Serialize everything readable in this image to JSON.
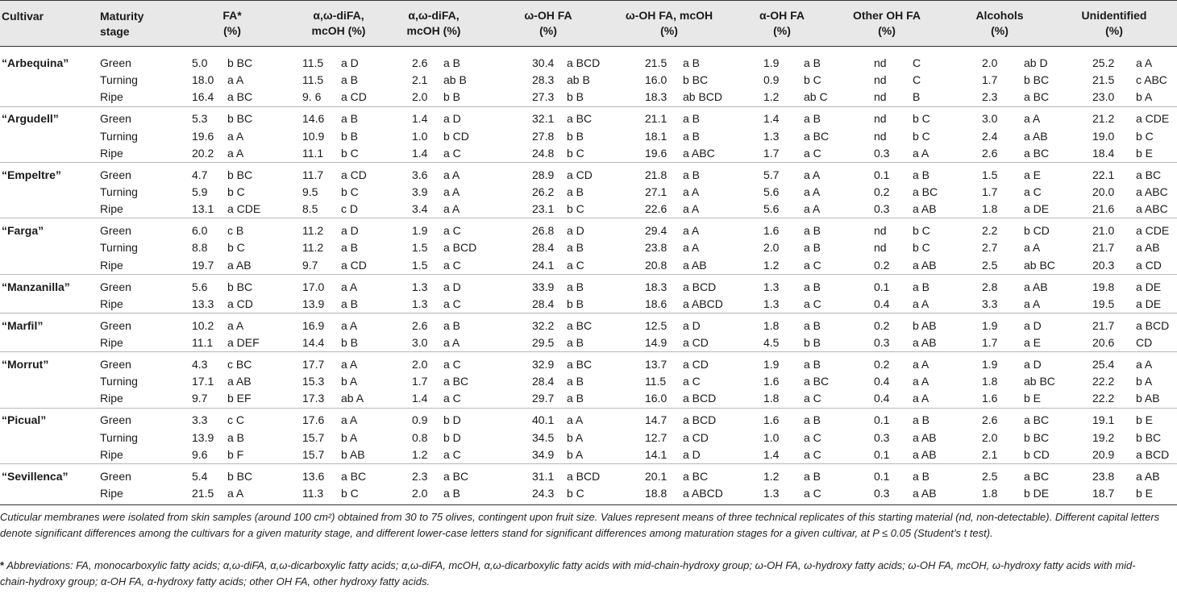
{
  "headers": {
    "cultivar": "Cultivar",
    "maturity": [
      "Maturity",
      "stage"
    ],
    "columns": [
      [
        "FA*",
        "(%)"
      ],
      [
        "α,ω-diFA,",
        "mcOH (%)"
      ],
      [
        "α,ω-diFA,",
        "mcOH (%)"
      ],
      [
        "ω-OH FA",
        "(%)"
      ],
      [
        "ω-OH FA, mcOH",
        "(%)"
      ],
      [
        "α-OH FA",
        "(%)"
      ],
      [
        "Other OH FA",
        "(%)"
      ],
      [
        "Alcohols",
        "(%)"
      ],
      [
        "Unidentified",
        "(%)"
      ]
    ]
  },
  "groups": [
    {
      "cultivar": "“Arbequina”",
      "rows": [
        {
          "stage": "Green",
          "cells": [
            [
              "5.0",
              "b BC"
            ],
            [
              "11.5",
              "a D"
            ],
            [
              "2.6",
              "a B"
            ],
            [
              "30.4",
              "a BCD"
            ],
            [
              "21.5",
              "a B"
            ],
            [
              "1.9",
              "a B"
            ],
            [
              "nd",
              "C"
            ],
            [
              "2.0",
              "ab D"
            ],
            [
              "25.2",
              "a A"
            ]
          ]
        },
        {
          "stage": "Turning",
          "cells": [
            [
              "18.0",
              "a A"
            ],
            [
              "11.5",
              "a B"
            ],
            [
              "2.1",
              "ab B"
            ],
            [
              "28.3",
              "ab B"
            ],
            [
              "16.0",
              "b BC"
            ],
            [
              "0.9",
              "b C"
            ],
            [
              "nd",
              "C"
            ],
            [
              "1.7",
              "b BC"
            ],
            [
              "21.5",
              "c ABC"
            ]
          ]
        },
        {
          "stage": "Ripe",
          "cells": [
            [
              "16.4",
              "a BC"
            ],
            [
              "9. 6",
              "a CD"
            ],
            [
              "2.0",
              "b B"
            ],
            [
              "27.3",
              "b B"
            ],
            [
              "18.3",
              "ab BCD"
            ],
            [
              "1.2",
              "ab C"
            ],
            [
              "nd",
              "B"
            ],
            [
              "2.3",
              "a BC"
            ],
            [
              "23.0",
              "b A"
            ]
          ]
        }
      ]
    },
    {
      "cultivar": "“Argudell”",
      "rows": [
        {
          "stage": "Green",
          "cells": [
            [
              "5.3",
              "b BC"
            ],
            [
              "14.6",
              "a B"
            ],
            [
              "1.4",
              "a D"
            ],
            [
              "32.1",
              "a BC"
            ],
            [
              "21.1",
              "a B"
            ],
            [
              "1.4",
              "a B"
            ],
            [
              "nd",
              "b C"
            ],
            [
              "3.0",
              "a A"
            ],
            [
              "21.2",
              "a CDE"
            ]
          ]
        },
        {
          "stage": "Turning",
          "cells": [
            [
              "19.6",
              "a A"
            ],
            [
              "10.9",
              "b B"
            ],
            [
              "1.0",
              "b CD"
            ],
            [
              "27.8",
              "b B"
            ],
            [
              "18.1",
              "a B"
            ],
            [
              "1.3",
              "a BC"
            ],
            [
              "nd",
              "b C"
            ],
            [
              "2.4",
              "a AB"
            ],
            [
              "19.0",
              "b C"
            ]
          ]
        },
        {
          "stage": "Ripe",
          "cells": [
            [
              "20.2",
              "a A"
            ],
            [
              "11.1",
              "b C"
            ],
            [
              "1.4",
              "a C"
            ],
            [
              "24.8",
              "b C"
            ],
            [
              "19.6",
              "a ABC"
            ],
            [
              "1.7",
              "a C"
            ],
            [
              "0.3",
              "a A"
            ],
            [
              "2.6",
              "a BC"
            ],
            [
              "18.4",
              "b E"
            ]
          ]
        }
      ]
    },
    {
      "cultivar": "“Empeltre”",
      "rows": [
        {
          "stage": "Green",
          "cells": [
            [
              "4.7",
              "b BC"
            ],
            [
              "11.7",
              "a CD"
            ],
            [
              "3.6",
              "a A"
            ],
            [
              "28.9",
              "a CD"
            ],
            [
              "21.8",
              "a B"
            ],
            [
              "5.7",
              "a A"
            ],
            [
              "0.1",
              "a B"
            ],
            [
              "1.5",
              "a E"
            ],
            [
              "22.1",
              "a BC"
            ]
          ]
        },
        {
          "stage": "Turning",
          "cells": [
            [
              "5.9",
              "b C"
            ],
            [
              "9.5",
              "b C"
            ],
            [
              "3.9",
              "a A"
            ],
            [
              "26.2",
              "a B"
            ],
            [
              "27.1",
              "a A"
            ],
            [
              "5.6",
              "a A"
            ],
            [
              "0.2",
              "a BC"
            ],
            [
              "1.7",
              "a C"
            ],
            [
              "20.0",
              "a ABC"
            ]
          ]
        },
        {
          "stage": "Ripe",
          "cells": [
            [
              "13.1",
              "a CDE"
            ],
            [
              "8.5",
              "c D"
            ],
            [
              "3.4",
              "a A"
            ],
            [
              "23.1",
              "b C"
            ],
            [
              "22.6",
              "a A"
            ],
            [
              "5.6",
              "a A"
            ],
            [
              "0.3",
              "a AB"
            ],
            [
              "1.8",
              "a DE"
            ],
            [
              "21.6",
              "a ABC"
            ]
          ]
        }
      ]
    },
    {
      "cultivar": "“Farga”",
      "rows": [
        {
          "stage": "Green",
          "cells": [
            [
              "6.0",
              "c B"
            ],
            [
              "11.2",
              "a D"
            ],
            [
              "1.9",
              "a C"
            ],
            [
              "26.8",
              "a D"
            ],
            [
              "29.4",
              "a A"
            ],
            [
              "1.6",
              "a B"
            ],
            [
              "nd",
              "b C"
            ],
            [
              "2.2",
              "b CD"
            ],
            [
              "21.0",
              "a CDE"
            ]
          ]
        },
        {
          "stage": "Turning",
          "cells": [
            [
              "8.8",
              "b C"
            ],
            [
              "11.2",
              "a B"
            ],
            [
              "1.5",
              "a BCD"
            ],
            [
              "28.4",
              "a B"
            ],
            [
              "23.8",
              "a A"
            ],
            [
              "2.0",
              "a B"
            ],
            [
              "nd",
              "b C"
            ],
            [
              "2.7",
              "a A"
            ],
            [
              "21.7",
              "a AB"
            ]
          ]
        },
        {
          "stage": "Ripe",
          "cells": [
            [
              "19.7",
              "a AB"
            ],
            [
              "9.7",
              "a CD"
            ],
            [
              "1.5",
              "a C"
            ],
            [
              "24.1",
              "a C"
            ],
            [
              "20.8",
              "a AB"
            ],
            [
              "1.2",
              "a C"
            ],
            [
              "0.2",
              "a AB"
            ],
            [
              "2.5",
              "ab BC"
            ],
            [
              "20.3",
              "a CD"
            ]
          ]
        }
      ]
    },
    {
      "cultivar": "“Manzanilla”",
      "rows": [
        {
          "stage": "Green",
          "cells": [
            [
              "5.6",
              "b BC"
            ],
            [
              "17.0",
              "a A"
            ],
            [
              "1.3",
              "a D"
            ],
            [
              "33.9",
              "a B"
            ],
            [
              "18.3",
              "a BCD"
            ],
            [
              "1.3",
              "a B"
            ],
            [
              "0.1",
              "a B"
            ],
            [
              "2.8",
              "a AB"
            ],
            [
              "19.8",
              "a DE"
            ]
          ]
        },
        {
          "stage": "Ripe",
          "cells": [
            [
              "13.3",
              "a CD"
            ],
            [
              "13.9",
              "a B"
            ],
            [
              "1.3",
              "a C"
            ],
            [
              "28.4",
              "b B"
            ],
            [
              "18.6",
              "a ABCD"
            ],
            [
              "1.3",
              "a C"
            ],
            [
              "0.4",
              "a A"
            ],
            [
              "3.3",
              "a A"
            ],
            [
              "19.5",
              "a DE"
            ]
          ]
        }
      ]
    },
    {
      "cultivar": "“Marfil”",
      "rows": [
        {
          "stage": "Green",
          "cells": [
            [
              "10.2",
              "a A"
            ],
            [
              "16.9",
              "a A"
            ],
            [
              "2.6",
              "a B"
            ],
            [
              "32.2",
              "a BC"
            ],
            [
              "12.5",
              "a D"
            ],
            [
              "1.8",
              "a B"
            ],
            [
              "0.2",
              "b AB"
            ],
            [
              "1.9",
              "a D"
            ],
            [
              "21.7",
              "a BCD"
            ]
          ]
        },
        {
          "stage": "Ripe",
          "cells": [
            [
              "11.1",
              "a DEF"
            ],
            [
              "14.4",
              "b B"
            ],
            [
              "3.0",
              "a A"
            ],
            [
              "29.5",
              "a B"
            ],
            [
              "14.9",
              "a CD"
            ],
            [
              "4.5",
              "b B"
            ],
            [
              "0.3",
              "a AB"
            ],
            [
              "1.7",
              "a E"
            ],
            [
              "20.6",
              "CD"
            ]
          ]
        }
      ]
    },
    {
      "cultivar": "“Morrut”",
      "rows": [
        {
          "stage": "Green",
          "cells": [
            [
              "4.3",
              "c BC"
            ],
            [
              "17.7",
              "a A"
            ],
            [
              "2.0",
              "a C"
            ],
            [
              "32.9",
              "a BC"
            ],
            [
              "13.7",
              "a CD"
            ],
            [
              "1.9",
              "a B"
            ],
            [
              "0.2",
              "a A"
            ],
            [
              "1.9",
              "a D"
            ],
            [
              "25.4",
              "a A"
            ]
          ]
        },
        {
          "stage": "Turning",
          "cells": [
            [
              "17.1",
              "a AB"
            ],
            [
              "15.3",
              "b A"
            ],
            [
              "1.7",
              "a BC"
            ],
            [
              "28.4",
              "a B"
            ],
            [
              "11.5",
              "a C"
            ],
            [
              "1.6",
              "a BC"
            ],
            [
              "0.4",
              "a A"
            ],
            [
              "1.8",
              "ab BC"
            ],
            [
              "22.2",
              "b A"
            ]
          ]
        },
        {
          "stage": "Ripe",
          "cells": [
            [
              "9.7",
              "b EF"
            ],
            [
              "17.3",
              "ab A"
            ],
            [
              "1.4",
              "a C"
            ],
            [
              "29.7",
              "a B"
            ],
            [
              "16.0",
              "a BCD"
            ],
            [
              "1.8",
              "a C"
            ],
            [
              "0.4",
              "a A"
            ],
            [
              "1.6",
              "b E"
            ],
            [
              "22.2",
              "b AB"
            ]
          ]
        }
      ]
    },
    {
      "cultivar": "“Picual”",
      "rows": [
        {
          "stage": "Green",
          "cells": [
            [
              "3.3",
              "c C"
            ],
            [
              "17.6",
              "a A"
            ],
            [
              "0.9",
              "b D"
            ],
            [
              "40.1",
              "a A"
            ],
            [
              "14.7",
              "a BCD"
            ],
            [
              "1.6",
              "a B"
            ],
            [
              "0.1",
              "a B"
            ],
            [
              "2.6",
              "a BC"
            ],
            [
              "19.1",
              "b E"
            ]
          ]
        },
        {
          "stage": "Turning",
          "cells": [
            [
              "13.9",
              "a B"
            ],
            [
              "15.7",
              "b A"
            ],
            [
              "0.8",
              "b D"
            ],
            [
              "34.5",
              "b A"
            ],
            [
              "12.7",
              "a CD"
            ],
            [
              "1.0",
              "a C"
            ],
            [
              "0.3",
              "a AB"
            ],
            [
              "2.0",
              "b BC"
            ],
            [
              "19.2",
              "b BC"
            ]
          ]
        },
        {
          "stage": "Ripe",
          "cells": [
            [
              "9.6",
              "b F"
            ],
            [
              "15.7",
              "b AB"
            ],
            [
              "1.2",
              "a C"
            ],
            [
              "34.9",
              "b A"
            ],
            [
              "14.1",
              "a D"
            ],
            [
              "1.4",
              "a C"
            ],
            [
              "0.1",
              "a AB"
            ],
            [
              "2.1",
              "b CD"
            ],
            [
              "20.9",
              "a BCD"
            ]
          ]
        }
      ]
    },
    {
      "cultivar": "“Sevillenca”",
      "rows": [
        {
          "stage": "Green",
          "cells": [
            [
              "5.4",
              "b BC"
            ],
            [
              "13.6",
              "a BC"
            ],
            [
              "2.3",
              "a BC"
            ],
            [
              "31.1",
              "a BCD"
            ],
            [
              "20.1",
              "a BC"
            ],
            [
              "1.2",
              "a B"
            ],
            [
              "0.1",
              "a B"
            ],
            [
              "2.5",
              "a BC"
            ],
            [
              "23.8",
              "a AB"
            ]
          ]
        },
        {
          "stage": "Ripe",
          "cells": [
            [
              "21.5",
              "a A"
            ],
            [
              "11.3",
              "b C"
            ],
            [
              "2.0",
              "a B"
            ],
            [
              "24.3",
              "b C"
            ],
            [
              "18.8",
              "a ABCD"
            ],
            [
              "1.3",
              "a C"
            ],
            [
              "0.3",
              "a AB"
            ],
            [
              "1.8",
              "b DE"
            ],
            [
              "18.7",
              "b E"
            ]
          ]
        }
      ]
    }
  ],
  "footnotes": {
    "note1": "Cuticular membranes were isolated from skin samples (around 100 cm²) obtained from 30 to 75 olives, contingent upon fruit size. Values represent means of three technical replicates of this starting material (nd, non-detectable). Different capital letters denote significant differences among the cultivars for a given maturity stage, and different lower-case letters stand for significant differences among maturation stages for a given cultivar, at P ≤ 0.05 (Student’s t test).",
    "note2_marker": "*",
    "note2": " Abbreviations: FA, monocarboxylic fatty acids; α,ω-diFA, α,ω-dicarboxylic fatty acids; α,ω-diFA, mcOH, α,ω-dicarboxylic fatty acids with mid-chain-hydroxy group; ω-OH FA, ω-hydroxy fatty acids; ω-OH FA, mcOH, ω-hydroxy fatty acids with mid-chain-hydroxy group; α-OH FA, α-hydroxy fatty acids; other OH FA, other hydroxy fatty acids."
  }
}
